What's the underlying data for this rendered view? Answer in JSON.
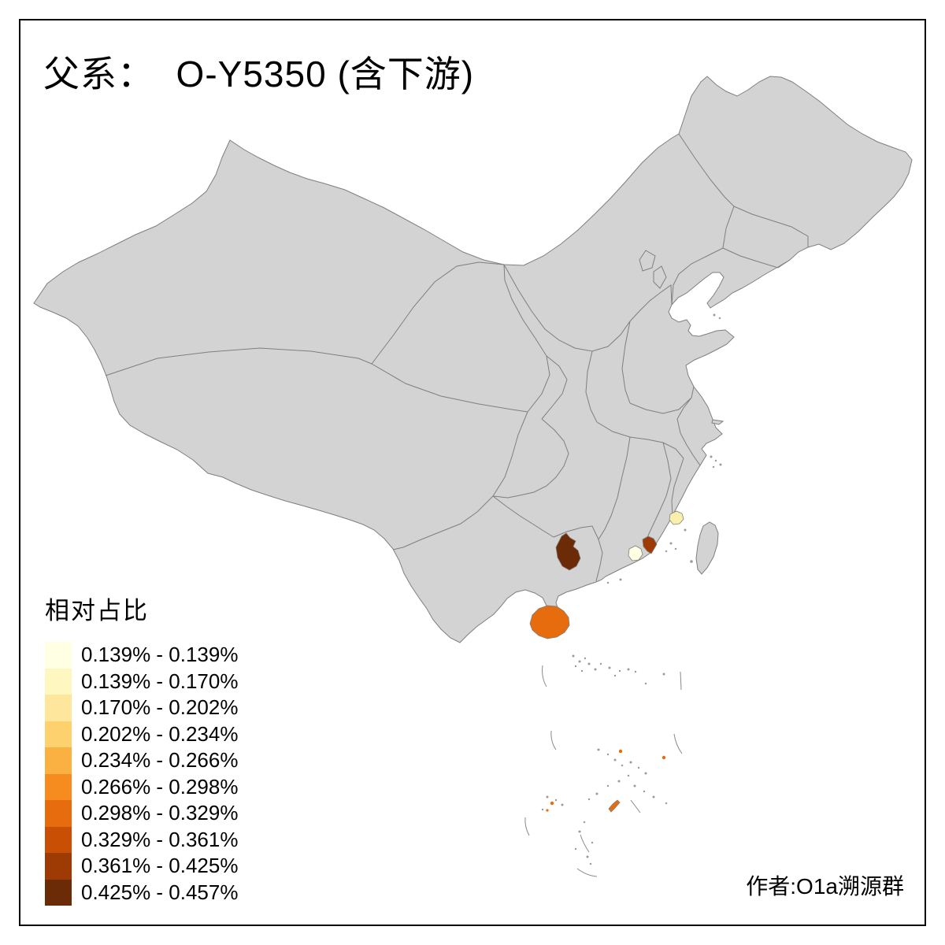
{
  "title": "父系：  O-Y5350 (含下游)",
  "author_credit": "作者:O1a溯源群",
  "legend": {
    "title": "相对占比",
    "classes": [
      {
        "label": "0.139% - 0.139%",
        "color": "#FFFFE3"
      },
      {
        "label": "0.139% - 0.170%",
        "color": "#FFF7C0"
      },
      {
        "label": "0.170% - 0.202%",
        "color": "#FEE79C"
      },
      {
        "label": "0.202% - 0.234%",
        "color": "#FDD26E"
      },
      {
        "label": "0.234% - 0.266%",
        "color": "#FBB042"
      },
      {
        "label": "0.266% - 0.298%",
        "color": "#F68B20"
      },
      {
        "label": "0.298% - 0.329%",
        "color": "#E66C0E"
      },
      {
        "label": "0.329% - 0.361%",
        "color": "#C84F04"
      },
      {
        "label": "0.361% - 0.425%",
        "color": "#9E3B05"
      },
      {
        "label": "0.425% - 0.457%",
        "color": "#6C2B07"
      }
    ]
  },
  "map": {
    "background": "#FFFFFF",
    "land_fill": "#D3D3D3",
    "border_color": "#7F7F7F",
    "frame_color": "#000000",
    "regions": {
      "guangxi_prefecture": {
        "color": "#6C2B07"
      },
      "chaoshan_prefecture": {
        "color": "#9E3B05"
      },
      "shanwei_prefecture": {
        "color": "#FFFFE3"
      },
      "putian_prefecture": {
        "color": "#FAF0AC"
      },
      "hainan": {
        "color": "#E66C0E"
      },
      "paracel_islets": {
        "color": "#E66C0E"
      }
    }
  }
}
